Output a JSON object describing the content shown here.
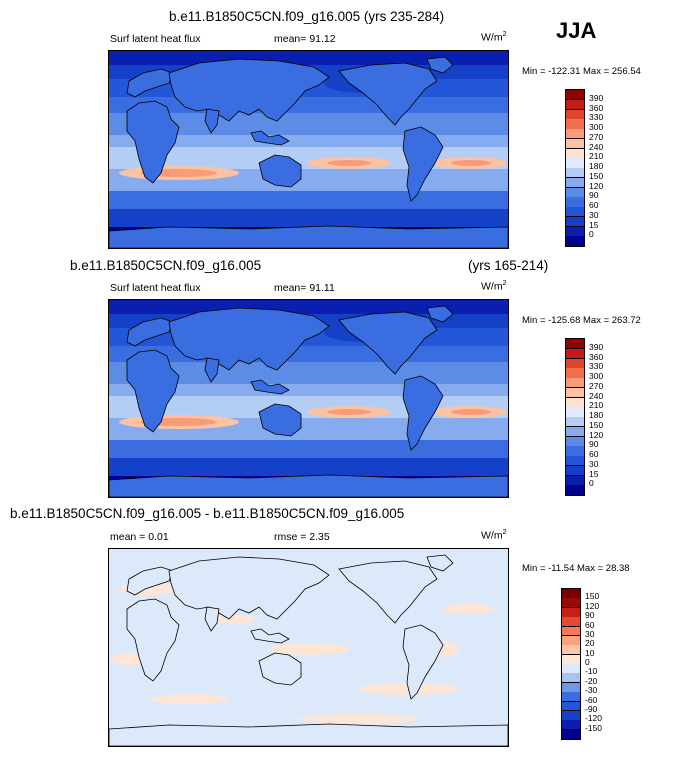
{
  "season": "JJA",
  "panels": [
    {
      "title": "b.e11.B1850C5CN.f09_g16.005 (yrs 235-284)",
      "title_right": "",
      "left_label": "Surf latent heat flux",
      "stat1": "mean=  91.12",
      "stat2": "",
      "units_base": "W/m",
      "units_exp": "2",
      "minmax": "Min = -122.31 Max = 256.54"
    },
    {
      "title": "b.e11.B1850C5CN.f09_g16.005",
      "title_right": "(yrs 165-214)",
      "left_label": "Surf latent heat flux",
      "stat1": "mean=  91.11",
      "stat2": "",
      "units_base": "W/m",
      "units_exp": "2",
      "minmax": "Min = -125.68 Max = 263.72"
    },
    {
      "title": "b.e11.B1850C5CN.f09_g16.005 - b.e11.B1850C5CN.f09_g16.005",
      "title_right": "",
      "left_label": "mean =   0.01",
      "stat1": "rmse =   2.35",
      "stat2": "",
      "units_base": "W/m",
      "units_exp": "2",
      "minmax": "Min = -11.54 Max = 28.38"
    }
  ],
  "chart_data": [
    {
      "type": "heatmap",
      "title": "b.e11.B1850C5CN.f09_g16.005 (yrs 235-284)",
      "variable": "Surf latent heat flux",
      "units": "W/m2",
      "mean": 91.12,
      "min": -122.31,
      "max": 256.54,
      "colorbar_levels": [
        0,
        15,
        30,
        60,
        90,
        120,
        150,
        180,
        210,
        240,
        270,
        300,
        330,
        360,
        390
      ],
      "colorbar_colors": [
        "#00008f",
        "#0a1fb0",
        "#1540c8",
        "#2457d8",
        "#3a6ee0",
        "#5c8ce6",
        "#86abee",
        "#b4cdf5",
        "#dfeafc",
        "#fde2cf",
        "#fbc2a4",
        "#f79b78",
        "#f0704e",
        "#e0442c",
        "#c21d14",
        "#8f0303"
      ],
      "axis_labels_visible": false
    },
    {
      "type": "heatmap",
      "title": "b.e11.B1850C5CN.f09_g16.005 (yrs 165-214)",
      "variable": "Surf latent heat flux",
      "units": "W/m2",
      "mean": 91.11,
      "min": -125.68,
      "max": 263.72,
      "colorbar_levels": [
        0,
        15,
        30,
        60,
        90,
        120,
        150,
        180,
        210,
        240,
        270,
        300,
        330,
        360,
        390
      ],
      "colorbar_colors": [
        "#00008f",
        "#0a1fb0",
        "#1540c8",
        "#2457d8",
        "#3a6ee0",
        "#5c8ce6",
        "#86abee",
        "#b4cdf5",
        "#dfeafc",
        "#fde2cf",
        "#fbc2a4",
        "#f79b78",
        "#f0704e",
        "#e0442c",
        "#c21d14",
        "#8f0303"
      ],
      "axis_labels_visible": false
    },
    {
      "type": "heatmap",
      "title": "b.e11.B1850C5CN.f09_g16.005 - b.e11.B1850C5CN.f09_g16.005",
      "units": "W/m2",
      "mean": 0.01,
      "rmse": 2.35,
      "min": -11.54,
      "max": 28.38,
      "colorbar_levels": [
        -150,
        -120,
        -90,
        -60,
        -30,
        -20,
        -10,
        0,
        10,
        20,
        30,
        60,
        90,
        120,
        150
      ],
      "colorbar_colors": [
        "#00008f",
        "#0a1fb0",
        "#1540c8",
        "#2457d8",
        "#3a6ee0",
        "#6f98e8",
        "#a7c3f2",
        "#dce9fb",
        "#fde6d6",
        "#fbc7a8",
        "#f8a37f",
        "#f27a55",
        "#e34b30",
        "#c71f15",
        "#9a0a05",
        "#7a0000"
      ],
      "axis_labels_visible": false
    }
  ]
}
